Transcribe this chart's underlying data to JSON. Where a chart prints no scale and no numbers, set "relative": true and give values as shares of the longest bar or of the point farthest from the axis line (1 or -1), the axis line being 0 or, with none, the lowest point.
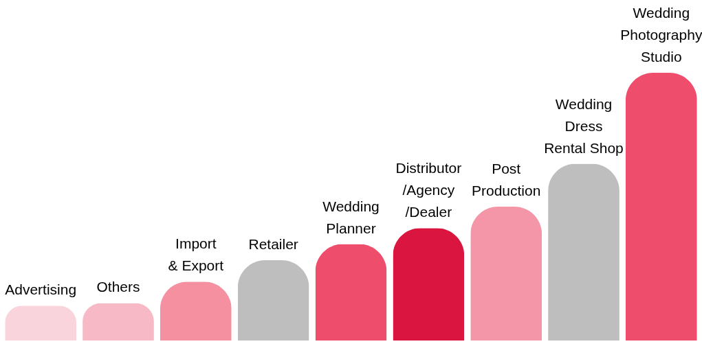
{
  "chart_data": {
    "type": "bar",
    "relative": true,
    "tick_labels": false,
    "categories": [
      "Advertising",
      "Others",
      "Import\n& Export",
      "Retailer",
      "Wedding\nPlanner",
      "Distributor\n/Agency\n/Dealer",
      "Post\nProduction",
      "Wedding\nDress\nRental Shop",
      "Wedding\nPhotography\nStudio"
    ],
    "values": [
      0.13,
      0.14,
      0.22,
      0.3,
      0.36,
      0.42,
      0.5,
      0.66,
      1
    ],
    "colors": [
      "#fad4dc",
      "#f8b9c6",
      "#f4909f",
      "#bebebe",
      "#ee4d6c",
      "#da1640",
      "#f495a8",
      "#bebebe",
      "#ee4d6c"
    ]
  }
}
